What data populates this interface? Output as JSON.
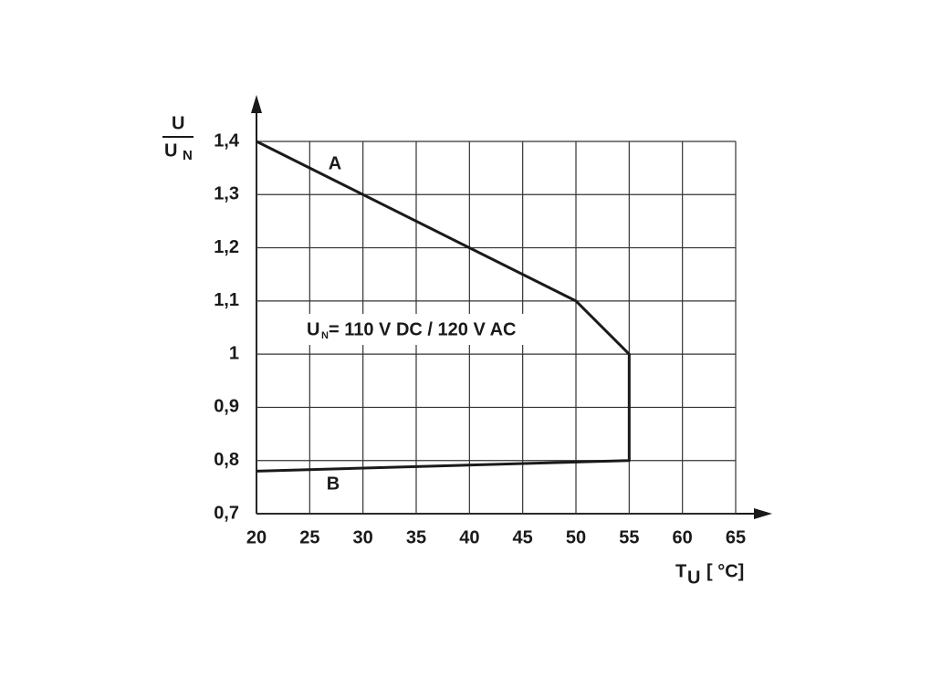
{
  "chart_data": {
    "type": "line",
    "x": [
      20,
      50,
      55,
      55,
      20
    ],
    "values": [
      1.4,
      1.1,
      1,
      0.8,
      0.78
    ],
    "color": "#1a1a1a",
    "xlim": [
      20,
      65
    ],
    "xticks": [
      20,
      25,
      30,
      35,
      40,
      45,
      50,
      55,
      60,
      65
    ],
    "ylim": [
      0.7,
      1.4
    ],
    "yticks": [
      {
        "value": 0.7,
        "label": "0,7"
      },
      {
        "value": 0.8,
        "label": "0,8"
      },
      {
        "value": 0.9,
        "label": "0,9"
      },
      1,
      {
        "value": 1.1,
        "label": "1,1"
      },
      {
        "value": 1.2,
        "label": "1,2"
      },
      {
        "value": 1.3,
        "label": "1,3"
      },
      {
        "value": 1.4,
        "label": "1,4"
      }
    ],
    "grid": true,
    "y_label": {
      "top": "U",
      "bottom": "U",
      "bottom_sub": "N"
    },
    "x_label": {
      "main": "T",
      "sub": "U",
      "unit": "[ °C]"
    },
    "annotations": {
      "curve_a": "A",
      "curve_b": "B",
      "note_main": "U",
      "note_sub": "N",
      "note_rest": "= 110 V DC / 120 V AC"
    }
  }
}
